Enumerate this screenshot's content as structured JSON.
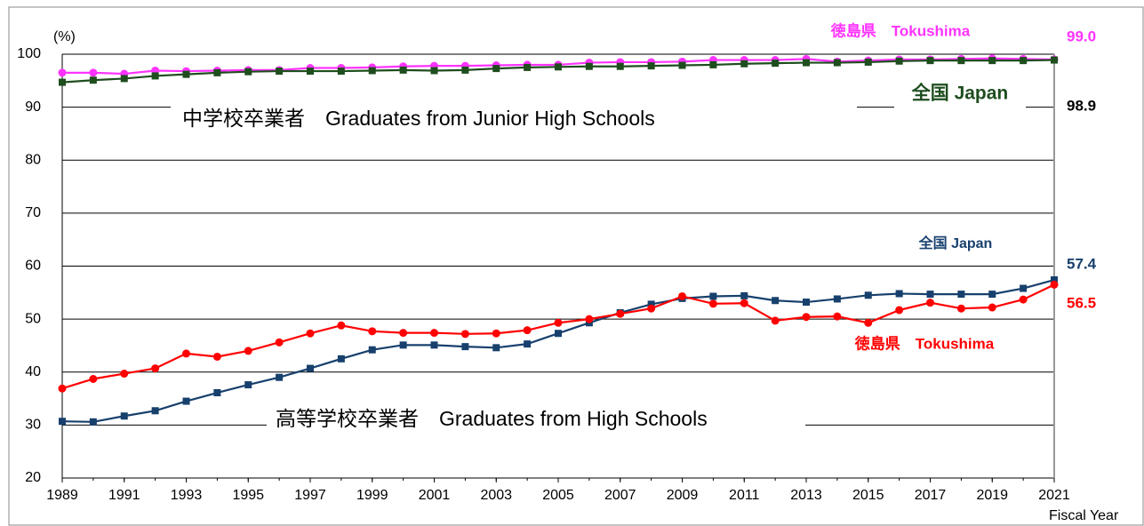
{
  "chart_data": {
    "type": "line",
    "y_label": "(%)",
    "x_label": "Fiscal Year",
    "annotations": [
      "中学校卒業者　Graduates from Junior High Schools",
      "高等学校卒業者　Graduates from High Schools"
    ],
    "x": [
      1989,
      1990,
      1991,
      1992,
      1993,
      1994,
      1995,
      1996,
      1997,
      1998,
      1999,
      2000,
      2001,
      2002,
      2003,
      2004,
      2005,
      2006,
      2007,
      2008,
      2009,
      2010,
      2011,
      2012,
      2013,
      2014,
      2015,
      2016,
      2017,
      2018,
      2019,
      2020,
      2021
    ],
    "xlim": [
      1989,
      2021
    ],
    "xticks": [
      1989,
      1991,
      1993,
      1995,
      1997,
      1999,
      2001,
      2003,
      2005,
      2007,
      2009,
      2011,
      2013,
      2015,
      2017,
      2019,
      2021
    ],
    "ylim": [
      20,
      100
    ],
    "yticks": [
      20,
      30,
      40,
      50,
      60,
      70,
      80,
      90,
      100
    ],
    "grid": true,
    "series": [
      {
        "name": "徳島県　Tokushima",
        "color": "#ff33ff",
        "marker": "circle",
        "values": [
          96.5,
          96.5,
          96.3,
          96.9,
          96.8,
          96.9,
          97.0,
          97.0,
          97.4,
          97.4,
          97.5,
          97.7,
          97.8,
          97.8,
          97.9,
          98.0,
          98.0,
          98.4,
          98.5,
          98.5,
          98.6,
          98.9,
          98.9,
          98.9,
          99.1,
          98.6,
          98.8,
          99.0,
          99.0,
          99.1,
          99.2,
          99.1,
          99.0
        ],
        "value_labels": [
          null,
          null,
          null,
          null,
          null,
          null,
          null,
          null,
          null,
          null,
          null,
          null,
          null,
          null,
          null,
          null,
          null,
          null,
          null,
          null,
          null,
          null,
          null,
          null,
          null,
          null,
          null,
          null,
          null,
          null,
          null,
          null,
          "99.0"
        ]
      },
      {
        "name": "全国 Japan",
        "color": "#1e4d1e",
        "marker": "square",
        "values": [
          94.7,
          95.1,
          95.4,
          95.9,
          96.2,
          96.5,
          96.7,
          96.8,
          96.8,
          96.8,
          96.9,
          97.0,
          96.9,
          97.0,
          97.3,
          97.5,
          97.6,
          97.7,
          97.7,
          97.8,
          97.9,
          98.0,
          98.2,
          98.3,
          98.4,
          98.4,
          98.5,
          98.7,
          98.8,
          98.8,
          98.8,
          98.8,
          98.9
        ]
      },
      {
        "name": "全国 Japan",
        "color": "#17406d",
        "marker": "square",
        "values": [
          30.7,
          30.6,
          31.7,
          32.7,
          34.5,
          36.1,
          37.6,
          39.0,
          40.7,
          42.5,
          44.2,
          45.1,
          45.1,
          44.8,
          44.6,
          45.3,
          47.3,
          49.3,
          51.2,
          52.8,
          53.9,
          54.3,
          54.4,
          53.5,
          53.2,
          53.8,
          54.5,
          54.8,
          54.7,
          54.7,
          54.7,
          55.8,
          57.4
        ]
      },
      {
        "name": "徳島県　Tokushima",
        "color": "#ff0000",
        "marker": "circle",
        "values": [
          36.9,
          38.7,
          39.7,
          40.7,
          43.5,
          42.9,
          44.0,
          45.6,
          47.3,
          48.8,
          47.7,
          47.4,
          47.4,
          47.2,
          47.3,
          47.9,
          49.3,
          50.0,
          51.0,
          52.0,
          54.3,
          52.9,
          53.0,
          49.7,
          50.4,
          50.5,
          49.3,
          51.7,
          53.1,
          52.0,
          52.2,
          53.7,
          56.5
        ]
      }
    ]
  }
}
